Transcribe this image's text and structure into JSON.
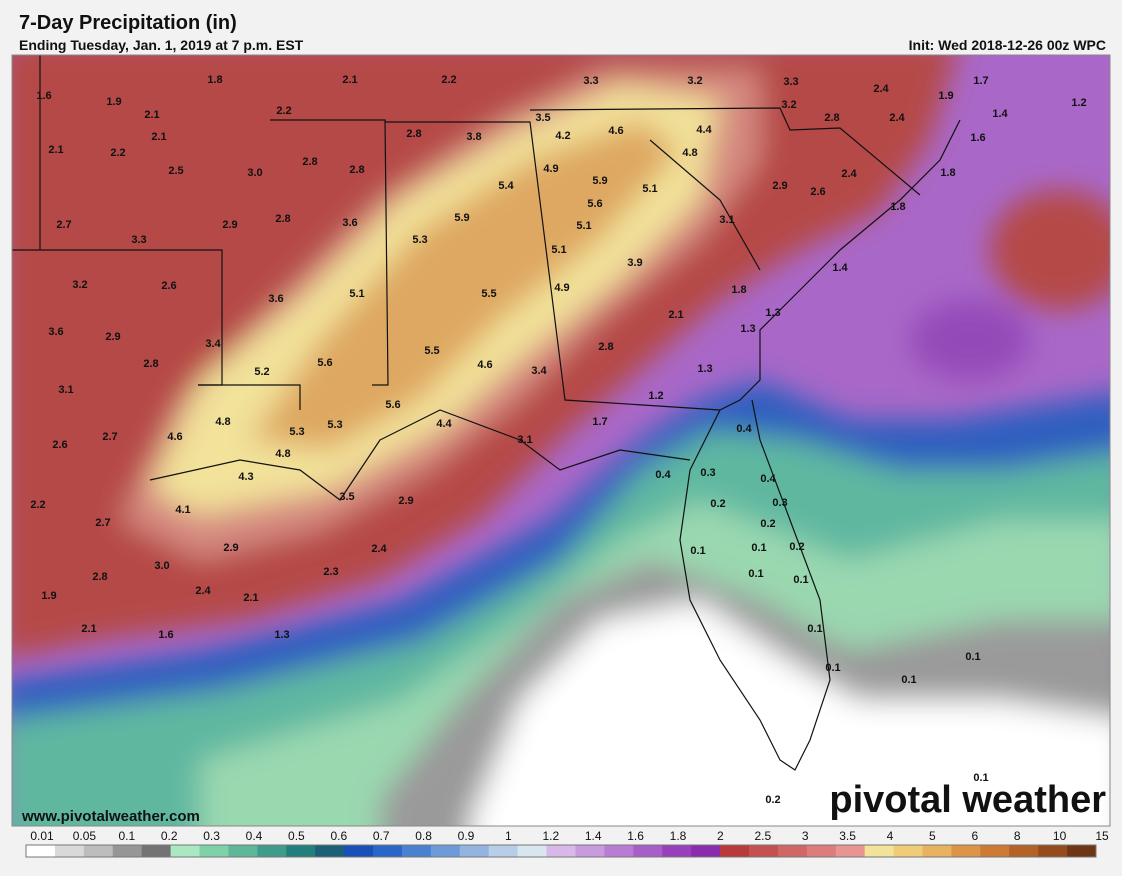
{
  "header": {
    "title": "7-Day Precipitation (in)",
    "subtitle": "Ending Tuesday, Jan. 1, 2019 at 7 p.m. EST",
    "init": "Init: Wed 2018-12-26 00z WPC"
  },
  "map": {
    "labels": [
      "1.6",
      "1.8",
      "1.9",
      "2.1",
      "2.2",
      "3.3",
      "3.2",
      "3.3",
      "2.4",
      "1.7",
      "1.9",
      "1.2",
      "1.4",
      "2.2",
      "2.1",
      "3.5",
      "2.8",
      "2.4",
      "3.2",
      "2.1",
      "2.1",
      "2.2",
      "2.8",
      "3.8",
      "4.2",
      "4.6",
      "4.4",
      "1.6",
      "4.8",
      "2.8",
      "2.8",
      "2.5",
      "3.0",
      "4.9",
      "5.9",
      "5.1",
      "2.4",
      "1.8",
      "5.4",
      "5.6",
      "2.9",
      "2.6",
      "1.8",
      "2.7",
      "2.8",
      "2.9",
      "3.6",
      "5.9",
      "5.1",
      "3.1",
      "3.3",
      "5.3",
      "5.1",
      "3.9",
      "1.4",
      "3.2",
      "2.6",
      "5.1",
      "5.5",
      "4.9",
      "1.8",
      "3.6",
      "2.1",
      "1.3",
      "1.3",
      "3.6",
      "2.9",
      "3.4",
      "2.8",
      "2.8",
      "5.6",
      "5.5",
      "4.6",
      "3.4",
      "1.3",
      "5.2",
      "3.1",
      "1.2",
      "5.6",
      "1.7",
      "4.8",
      "5.3",
      "5.3",
      "4.4",
      "0.4",
      "2.6",
      "2.7",
      "4.6",
      "3.1",
      "4.8",
      "0.4",
      "0.3",
      "4.3",
      "0.4",
      "3.5",
      "2.9",
      "0.3",
      "2.2",
      "4.1",
      "0.2",
      "2.7",
      "0.2",
      "2.9",
      "2.4",
      "0.1",
      "0.1",
      "0.2",
      "3.0",
      "2.3",
      "0.1",
      "0.1",
      "2.8",
      "2.4",
      "2.1",
      "1.9",
      "0.1",
      "2.1",
      "1.6",
      "1.3",
      "0.1",
      "0.1",
      "0.1",
      "0.1",
      "0.2"
    ]
  },
  "colorbar": {
    "labels": [
      "0.01",
      "0.05",
      "0.1",
      "0.2",
      "0.3",
      "0.4",
      "0.5",
      "0.6",
      "0.7",
      "0.8",
      "0.9",
      "1",
      "1.2",
      "1.4",
      "1.6",
      "1.8",
      "2",
      "2.5",
      "3",
      "3.5",
      "4",
      "5",
      "6",
      "8",
      "10",
      "15"
    ]
  },
  "footer": {
    "website": "www.pivotalweather.com",
    "logo": "pivotal weather"
  }
}
